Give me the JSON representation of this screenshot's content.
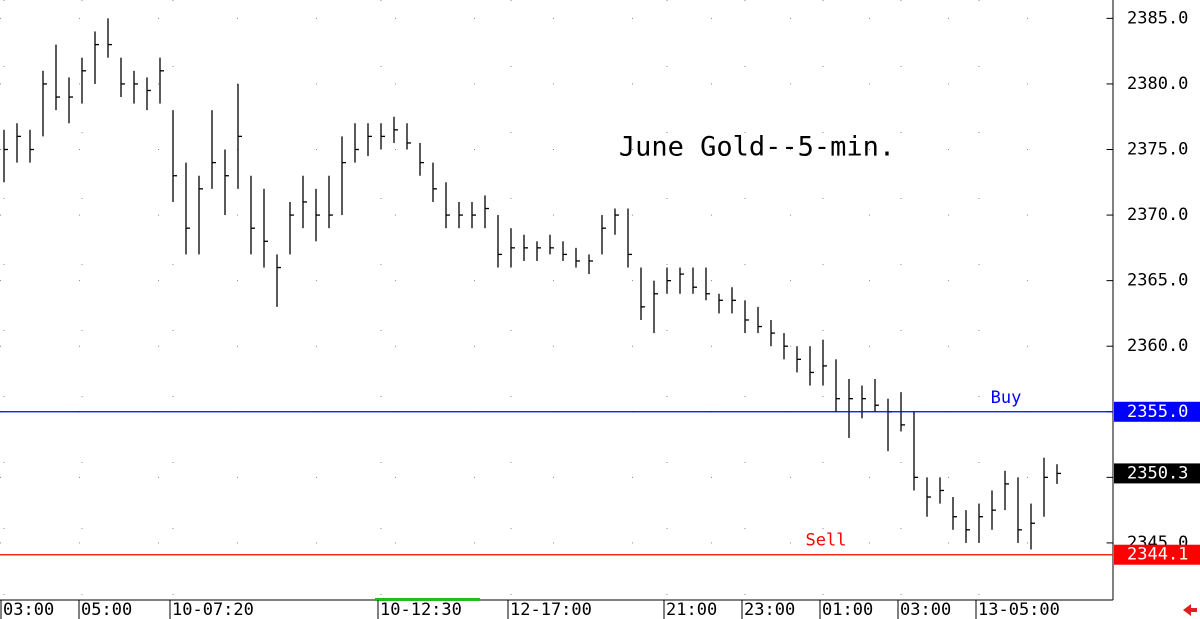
{
  "chart_data": {
    "type": "ohlc",
    "title": "June Gold--5-min.",
    "categories": [
      "03:00",
      null,
      null,
      null,
      null,
      null,
      "05:00",
      null,
      null,
      null,
      null,
      null,
      null,
      "10-07:20",
      null,
      null,
      null,
      null,
      null,
      null,
      null,
      null,
      null,
      null,
      null,
      null,
      null,
      null,
      null,
      "10-12:30",
      null,
      null,
      null,
      null,
      null,
      null,
      null,
      null,
      null,
      "12-17:00",
      null,
      null,
      null,
      null,
      null,
      null,
      null,
      null,
      null,
      null,
      null,
      "21:00",
      null,
      null,
      null,
      null,
      null,
      "23:00",
      null,
      null,
      null,
      null,
      null,
      "01:00",
      null,
      null,
      null,
      null,
      null,
      "03:00",
      null,
      null,
      null,
      null,
      null,
      "13-05:00",
      null,
      null,
      null,
      null,
      null,
      null
    ],
    "high": [
      2376.5,
      2377,
      2376.5,
      2381,
      2383,
      2380.5,
      2382,
      2384,
      2385,
      2382,
      2381,
      2380.5,
      2382,
      2378,
      2374,
      2373,
      2378,
      2375,
      2380,
      2373,
      2372,
      2367,
      2371,
      2373,
      2372,
      2373,
      2376,
      2377,
      2377,
      2377,
      2377.5,
      2377,
      2375.5,
      2374,
      2372.5,
      2371,
      2371,
      2371.5,
      2370,
      2369,
      2368.5,
      2368,
      2368.5,
      2368,
      2367.5,
      2367,
      2370,
      2370.5,
      2370.5,
      2366,
      2365,
      2366,
      2366,
      2366,
      2366,
      2364,
      2364.5,
      2363.5,
      2363,
      2362,
      2361,
      2360,
      2360,
      2360.5,
      2359,
      2357.5,
      2357,
      2357.5,
      2356,
      2356.5,
      2355,
      2350,
      2350,
      2348.5,
      2347.5,
      2348,
      2349,
      2350.5,
      2350,
      2348,
      2351.5,
      2351
    ],
    "low": [
      2372.5,
      2374,
      2374,
      2376,
      2378,
      2377,
      2378.5,
      2380,
      2382,
      2379,
      2378.5,
      2378,
      2378.5,
      2371,
      2367,
      2367,
      2372,
      2370,
      2372,
      2367,
      2366,
      2363,
      2367,
      2369,
      2368,
      2369,
      2370,
      2374,
      2374.5,
      2375,
      2375.5,
      2375,
      2373,
      2371,
      2369,
      2369,
      2369,
      2369,
      2366,
      2366,
      2366.5,
      2366.5,
      2367,
      2366.5,
      2366,
      2365.5,
      2367,
      2368.5,
      2366,
      2362,
      2361,
      2364,
      2364,
      2364,
      2363.5,
      2362.5,
      2362.5,
      2361,
      2361,
      2360,
      2359,
      2358,
      2357,
      2357,
      2355,
      2353,
      2354.5,
      2355,
      2352,
      2353.5,
      2349,
      2347,
      2348,
      2346,
      2345,
      2345,
      2346,
      2347.5,
      2345,
      2344.5,
      2347,
      2349.5
    ],
    "close": [
      2375,
      2376,
      2375,
      2380,
      2379,
      2379,
      2381,
      2383,
      2383,
      2380,
      2380,
      2379.5,
      2381,
      2373,
      2369,
      2372,
      2374,
      2373,
      2376,
      2369,
      2368,
      2366,
      2370,
      2371,
      2370,
      2370,
      2374,
      2375,
      2376,
      2376,
      2376.5,
      2375.5,
      2374,
      2372,
      2370,
      2370,
      2370,
      2370.5,
      2367,
      2367.5,
      2367.5,
      2367.5,
      2367.5,
      2367,
      2366.5,
      2366.5,
      2369,
      2370,
      2367,
      2363,
      2364,
      2365,
      2365.5,
      2364.5,
      2364,
      2363.5,
      2363.5,
      2362,
      2361.5,
      2361,
      2360,
      2359,
      2358,
      2358.5,
      2356,
      2356,
      2356,
      2355.5,
      2355,
      2354,
      2350,
      2348.5,
      2349,
      2347,
      2346,
      2347,
      2347.5,
      2349.5,
      2346,
      2346.5,
      2350,
      2350.3
    ],
    "color": "#000000",
    "ylim": [
      2340.8,
      2386.4
    ],
    "yticks": [
      {
        "value": 2345,
        "label": "2345.0"
      },
      {
        "value": 2350,
        "label": "2350.0"
      },
      {
        "value": 2355,
        "label": "2355.0"
      },
      {
        "value": 2360,
        "label": "2360.0"
      },
      {
        "value": 2365,
        "label": "2365.0"
      },
      {
        "value": 2370,
        "label": "2370.0"
      },
      {
        "value": 2375,
        "label": "2375.0"
      },
      {
        "value": 2380,
        "label": "2380.0"
      },
      {
        "value": 2385,
        "label": "2385.0"
      }
    ],
    "grid": true,
    "lines": [
      {
        "name": "Buy",
        "value": 2355,
        "label": "2355.0",
        "color": "#0000ff"
      },
      {
        "name": "Sell",
        "value": 2344.1,
        "color": "#ff0000"
      }
    ],
    "last": 2350.3
  }
}
